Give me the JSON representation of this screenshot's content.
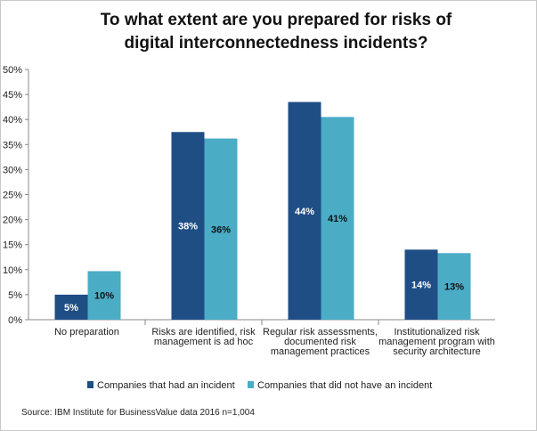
{
  "chart_data": {
    "type": "bar",
    "title_lines": [
      "To what extent are you prepared for risks of",
      "digital interconnectedness incidents?"
    ],
    "categories": [
      [
        "No preparation"
      ],
      [
        "Risks are identified, risk",
        "management is ad hoc"
      ],
      [
        "Regular risk assessments,",
        "documented risk",
        "management practices"
      ],
      [
        "Institutionalized risk",
        "management program with",
        "security architecture"
      ]
    ],
    "series": [
      {
        "name": "Companies that had an incident",
        "color": "#1f4e85",
        "values": [
          5,
          37.5,
          43.5,
          14
        ],
        "labels": [
          "5%",
          "38%",
          "44%",
          "14%"
        ]
      },
      {
        "name": "Companies that did not have an incident",
        "color": "#4bacc6",
        "values": [
          9.7,
          36.2,
          40.5,
          13.3
        ],
        "labels": [
          "10%",
          "36%",
          "41%",
          "13%"
        ]
      }
    ],
    "ylim": [
      0,
      50
    ],
    "yticks": [
      0,
      5,
      10,
      15,
      20,
      25,
      30,
      35,
      40,
      45,
      50
    ],
    "ytick_labels": [
      "0%",
      "5%",
      "10%",
      "15%",
      "20%",
      "25%",
      "30%",
      "35%",
      "40%",
      "45%",
      "50%"
    ],
    "grid": false,
    "legend_position": "bottom",
    "source": "Source: IBM Institute for BusinessValue data 2016 n=1,004"
  }
}
